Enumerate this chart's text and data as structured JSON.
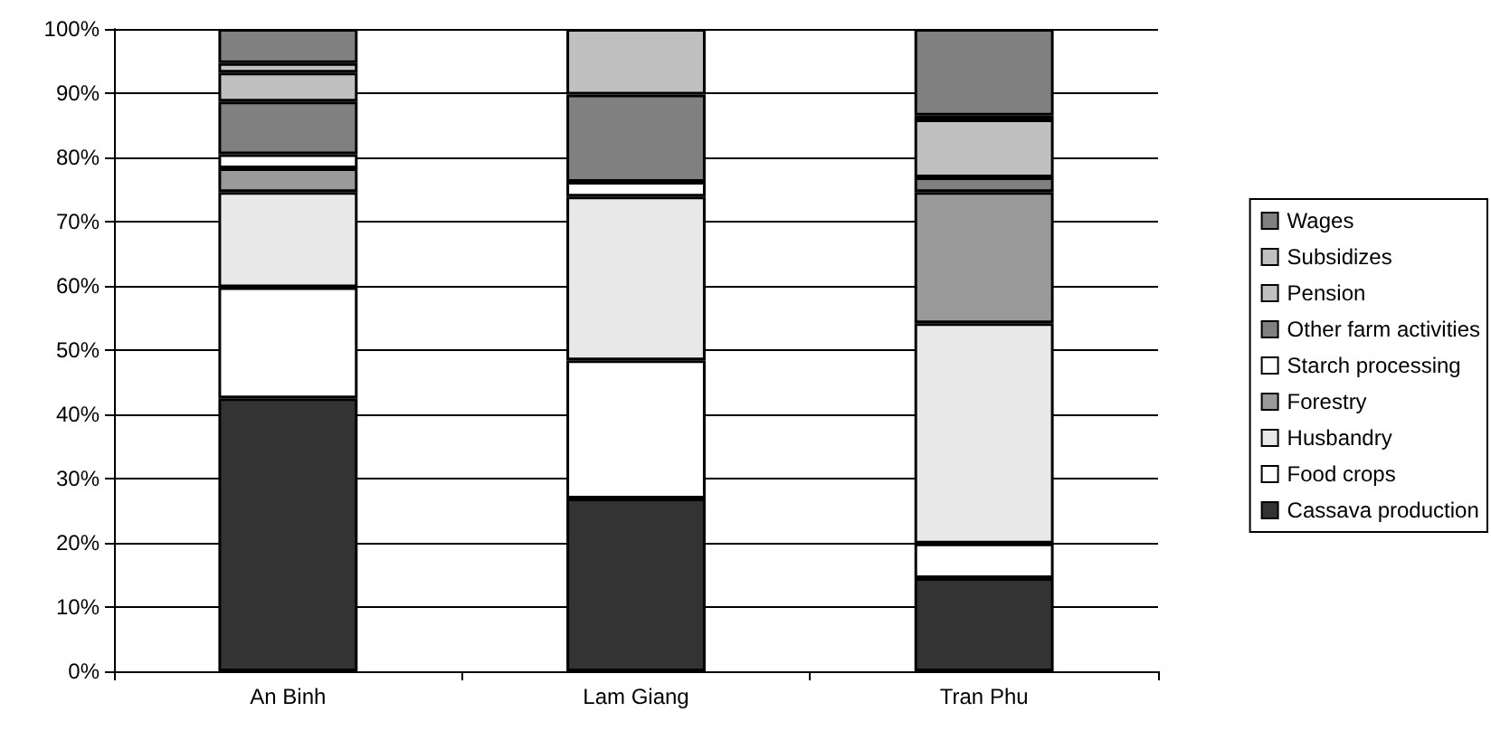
{
  "chart_data": {
    "type": "bar",
    "stacked": true,
    "categories": [
      "An Binh",
      "Lam Giang",
      "Tran Phu"
    ],
    "series": [
      {
        "name": "Cassava production",
        "color": "#333333",
        "values": [
          42.5,
          26.9,
          14.5
        ]
      },
      {
        "name": "Food crops",
        "color": "#ffffff",
        "values": [
          17.3,
          21.5,
          5.4
        ]
      },
      {
        "name": "Husbandry",
        "color": "#e8e8e8",
        "values": [
          14.8,
          25.5,
          34.3
        ]
      },
      {
        "name": "Forestry",
        "color": "#9a9a9a",
        "values": [
          3.7,
          null,
          20.4
        ]
      },
      {
        "name": "Starch processing",
        "color": "#ffffff",
        "values": [
          2.2,
          2.3,
          null
        ]
      },
      {
        "name": "Other farm activities",
        "color": "#808080",
        "values": [
          8.2,
          13.6,
          2.3
        ]
      },
      {
        "name": "Pension",
        "color": "#c0c0c0",
        "values": [
          4.5,
          null,
          9.0
        ]
      },
      {
        "name": "Subsidizes",
        "color": "#c0c0c0",
        "values": [
          1.5,
          10.2,
          0.6
        ]
      },
      {
        "name": "Wages",
        "color": "#808080",
        "values": [
          5.3,
          null,
          13.5
        ]
      }
    ],
    "ylim": [
      0,
      100
    ],
    "yticks": [
      {
        "value": 0,
        "label": "0%"
      },
      {
        "value": 10,
        "label": "10%"
      },
      {
        "value": 20,
        "label": "20%"
      },
      {
        "value": 30,
        "label": "30%"
      },
      {
        "value": 40,
        "label": "40%"
      },
      {
        "value": 50,
        "label": "50%"
      },
      {
        "value": 60,
        "label": "60%"
      },
      {
        "value": 70,
        "label": "70%"
      },
      {
        "value": 80,
        "label": "80%"
      },
      {
        "value": 90,
        "label": "90%"
      },
      {
        "value": 100,
        "label": "100%"
      }
    ],
    "grid": "y",
    "legend": "right"
  }
}
